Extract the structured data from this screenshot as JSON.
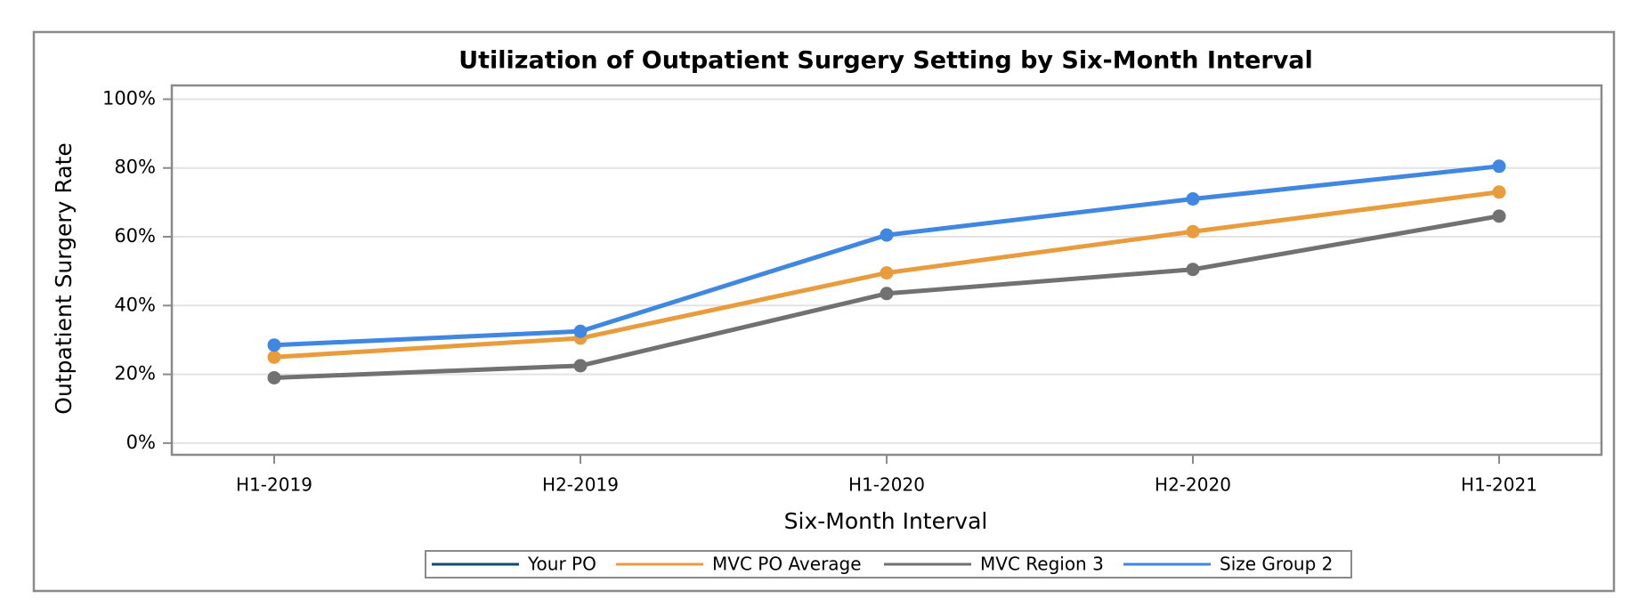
{
  "chart_data": {
    "type": "line",
    "title": "Utilization of Outpatient Surgery Setting by Six-Month Interval",
    "xlabel": "Six-Month Interval",
    "ylabel": "Outpatient Surgery Rate",
    "categories": [
      "H1-2019",
      "H2-2019",
      "H1-2020",
      "H2-2020",
      "H1-2021"
    ],
    "series": [
      {
        "name": "Your PO",
        "color": "#0f4c6e",
        "values": [
          null,
          null,
          null,
          null,
          null
        ]
      },
      {
        "name": "MVC PO Average",
        "color": "#e89c3c",
        "values": [
          25,
          30.5,
          49.5,
          61.5,
          73
        ]
      },
      {
        "name": "MVC Region 3",
        "color": "#717171",
        "values": [
          19,
          22.5,
          43.5,
          50.5,
          66
        ]
      },
      {
        "name": "Size Group 2",
        "color": "#3f87e0",
        "values": [
          28.5,
          32.5,
          60.5,
          71,
          80.5
        ]
      }
    ],
    "ylim": [
      -3.4,
      104
    ],
    "yticks": [
      {
        "value": 0,
        "label": "0%"
      },
      {
        "value": 20,
        "label": "20%"
      },
      {
        "value": 40,
        "label": "40%"
      },
      {
        "value": 60,
        "label": "60%"
      },
      {
        "value": 80,
        "label": "80%"
      },
      {
        "value": 100,
        "label": "100%"
      }
    ],
    "grid": true,
    "legend": "bottom"
  }
}
